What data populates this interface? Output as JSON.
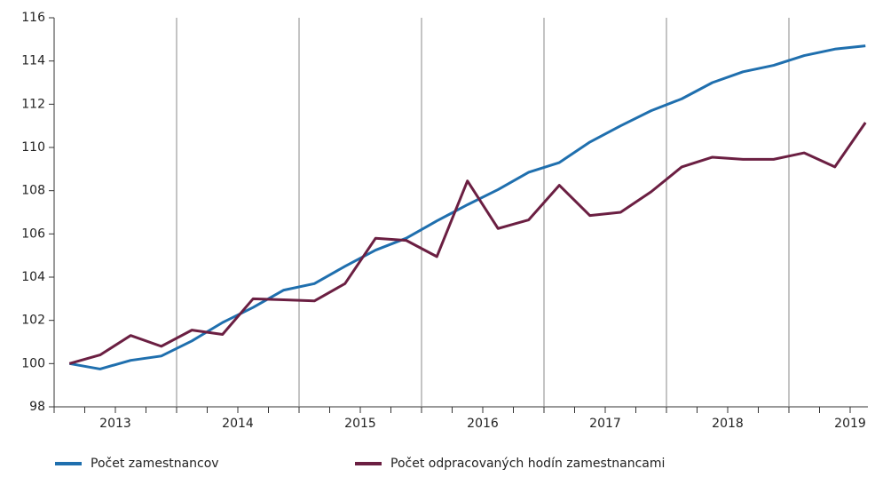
{
  "chart_data": {
    "type": "line",
    "categories": [
      null,
      null,
      null,
      null,
      null,
      null,
      null,
      null,
      null,
      null,
      null,
      null,
      null,
      null,
      null,
      null,
      null,
      null,
      null,
      null,
      null,
      null,
      null,
      null,
      null,
      null,
      null
    ],
    "years": [
      "2013",
      "2014",
      "2015",
      "2016",
      "2017",
      "2018",
      "2019"
    ],
    "series": [
      {
        "name": "Počet zamestnancov",
        "color": "#1f6fae",
        "values": [
          100,
          99.75,
          100.15,
          100.35,
          101.05,
          101.9,
          102.6,
          103.4,
          103.7,
          104.5,
          105.25,
          105.8,
          106.6,
          107.35,
          108.05,
          108.85,
          109.3,
          110.25,
          111.0,
          111.7,
          112.25,
          113.0,
          113.5,
          113.8,
          114.25,
          114.55,
          114.7
        ]
      },
      {
        "name": "Počet odpracovaných hodín zamestnancami",
        "color": "#6b1f42",
        "values": [
          100,
          100.4,
          101.3,
          100.8,
          101.55,
          101.35,
          103.0,
          102.95,
          102.9,
          103.7,
          105.8,
          105.7,
          104.95,
          108.45,
          106.25,
          106.65,
          108.25,
          106.85,
          107.0,
          107.95,
          109.1,
          109.55,
          109.45,
          109.45,
          109.75,
          109.1,
          111.15
        ]
      }
    ],
    "ylim": [
      98,
      116
    ],
    "yticks": [
      98,
      100,
      102,
      104,
      106,
      108,
      110,
      112,
      114,
      116
    ]
  }
}
